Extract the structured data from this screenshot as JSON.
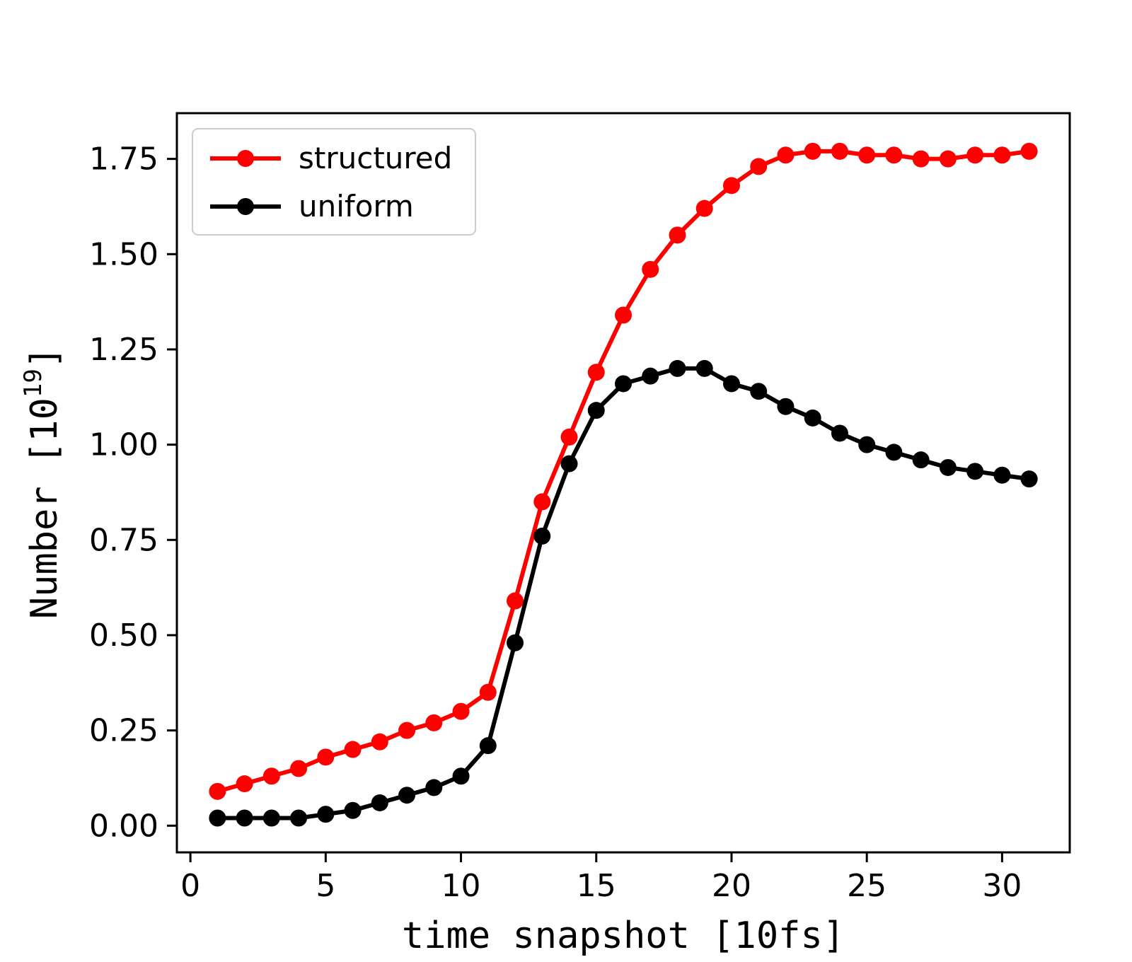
{
  "figure": {
    "background": "#ffffff",
    "axes_edge_color": "#000000",
    "tick_color": "#000000",
    "text_color": "#000000"
  },
  "chart_data": {
    "type": "line",
    "x": [
      1,
      2,
      3,
      4,
      5,
      6,
      7,
      8,
      9,
      10,
      11,
      12,
      13,
      14,
      15,
      16,
      17,
      18,
      19,
      20,
      21,
      22,
      23,
      24,
      25,
      26,
      27,
      28,
      29,
      30,
      31
    ],
    "series": [
      {
        "name": "structured",
        "color": "#ff0000",
        "marker": "circle",
        "values": [
          0.09,
          0.11,
          0.13,
          0.15,
          0.18,
          0.2,
          0.22,
          0.25,
          0.27,
          0.3,
          0.35,
          0.59,
          0.85,
          1.02,
          1.19,
          1.34,
          1.46,
          1.55,
          1.62,
          1.68,
          1.73,
          1.76,
          1.77,
          1.77,
          1.76,
          1.76,
          1.75,
          1.75,
          1.76,
          1.76,
          1.77
        ]
      },
      {
        "name": "uniform",
        "color": "#000000",
        "marker": "circle",
        "values": [
          0.02,
          0.02,
          0.02,
          0.02,
          0.03,
          0.04,
          0.06,
          0.08,
          0.1,
          0.13,
          0.21,
          0.48,
          0.76,
          0.95,
          1.09,
          1.16,
          1.18,
          1.2,
          1.2,
          1.16,
          1.14,
          1.1,
          1.07,
          1.03,
          1.0,
          0.98,
          0.96,
          0.94,
          0.93,
          0.92,
          0.91
        ]
      }
    ],
    "title": "",
    "xlabel": "time snapshot [10fs]",
    "ylabel": {
      "base": "Number [10",
      "sup": "19",
      "close": "]"
    },
    "x_ticks": [
      0,
      5,
      10,
      15,
      20,
      25,
      30
    ],
    "y_ticks": [
      "0.00",
      "0.25",
      "0.50",
      "0.75",
      "1.00",
      "1.25",
      "1.50",
      "1.75"
    ],
    "xlim": [
      -0.5,
      32.5
    ],
    "ylim": [
      -0.07,
      1.87
    ],
    "grid": false,
    "legend": {
      "position": "upper left",
      "items": [
        {
          "label": "structured",
          "color": "#ff0000"
        },
        {
          "label": "uniform",
          "color": "#000000"
        }
      ]
    }
  }
}
